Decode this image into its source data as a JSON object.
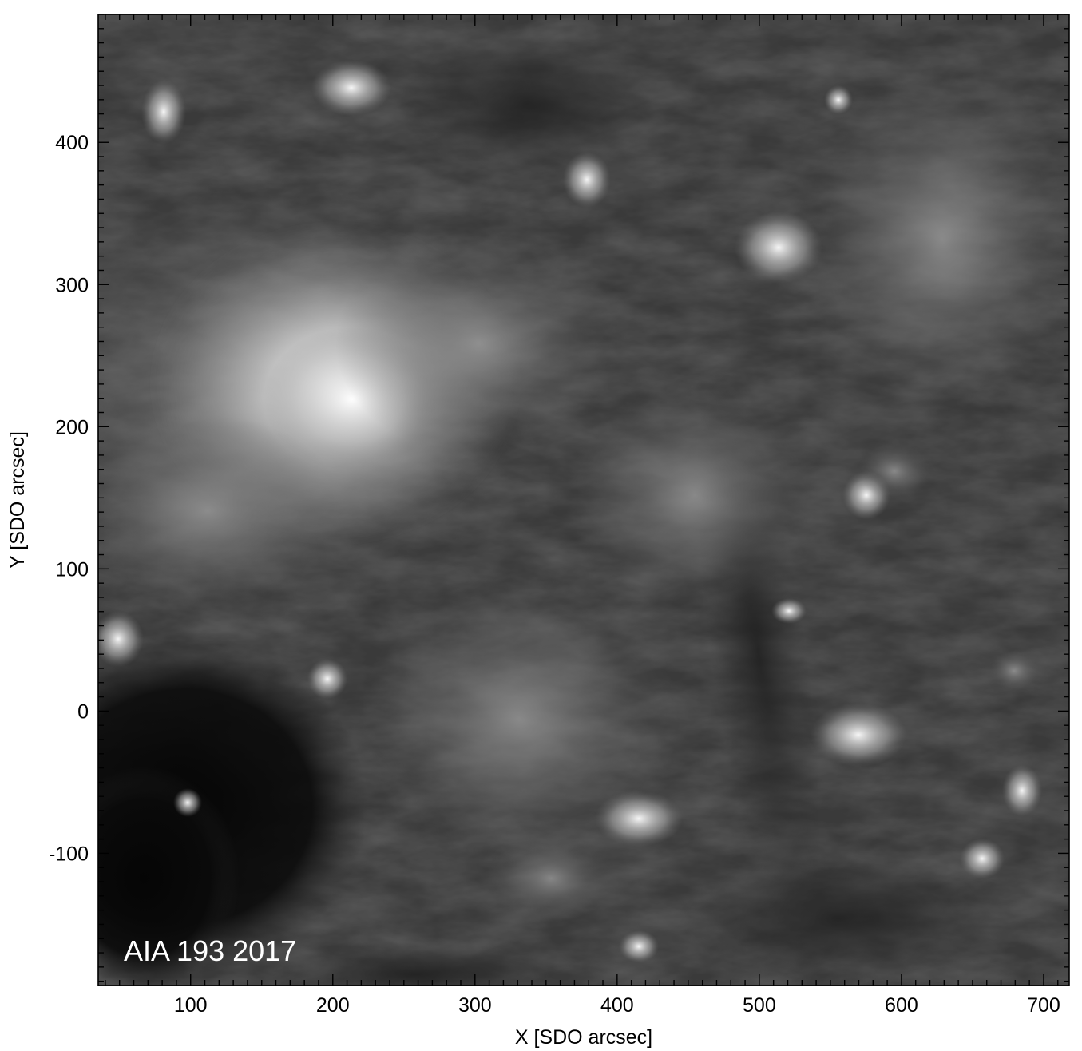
{
  "panel_label": "AIA 193  2017",
  "x_axis": {
    "title": "X  [SDO arcsec]",
    "range": [
      35,
      718
    ],
    "major_ticks": [
      100,
      200,
      300,
      400,
      500,
      600,
      700
    ],
    "minor_step": 10
  },
  "y_axis": {
    "title": "Y  [SDO arcsec]",
    "range": [
      -193,
      490
    ],
    "major_ticks": [
      -100,
      0,
      100,
      200,
      300,
      400
    ],
    "minor_step": 10
  },
  "colors": {
    "frame": "#000000",
    "image_dark": "#0a0a0a",
    "image_mid": "#4a4a4a",
    "image_bright": "#f0f0f0",
    "label": "#ffffff"
  }
}
